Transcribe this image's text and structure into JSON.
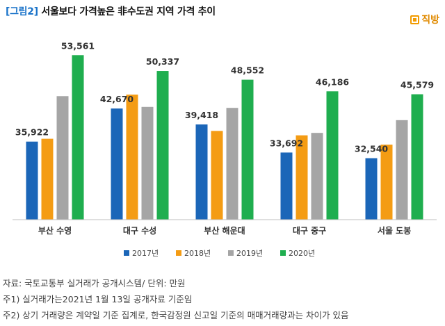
{
  "header": {
    "tag": "[그림2]",
    "title": "서울보다 가격높은 非수도권 지역 가격 추이",
    "brand": "직방",
    "brand_icon": "zigbang-logo-icon"
  },
  "colors": {
    "2017년": "#1b66b8",
    "2018년": "#f49c14",
    "2019년": "#a5a5a5",
    "2020년": "#1fae4f",
    "title_tag": "#1a73c9",
    "brand": "#f29b00"
  },
  "chart_data": {
    "type": "bar",
    "title": "서울보다 가격높은 非수도권 지역 가격 추이",
    "categories": [
      "부산 수영",
      "대구 수성",
      "부산 해운대",
      "대구 중구",
      "서울 도봉"
    ],
    "series": [
      {
        "name": "2017년",
        "values": [
          35922,
          42670,
          39418,
          33692,
          32540
        ]
      },
      {
        "name": "2018년",
        "values": [
          36500,
          45500,
          38100,
          37200,
          35300
        ]
      },
      {
        "name": "2019년",
        "values": [
          45200,
          43000,
          42800,
          37700,
          40300
        ]
      },
      {
        "name": "2020년",
        "values": [
          53561,
          50337,
          48552,
          46186,
          45579
        ]
      }
    ],
    "data_labels": [
      {
        "category": "부산 수영",
        "series": "2017년",
        "text": "35,922"
      },
      {
        "category": "부산 수영",
        "series": "2020년",
        "text": "53,561"
      },
      {
        "category": "대구 수성",
        "series": "2017년",
        "text": "42,670"
      },
      {
        "category": "대구 수성",
        "series": "2020년",
        "text": "50,337"
      },
      {
        "category": "부산 해운대",
        "series": "2017년",
        "text": "39,418"
      },
      {
        "category": "부산 해운대",
        "series": "2020년",
        "text": "48,552"
      },
      {
        "category": "대구 중구",
        "series": "2017년",
        "text": "33,692"
      },
      {
        "category": "대구 중구",
        "series": "2020년",
        "text": "46,186"
      },
      {
        "category": "서울 도봉",
        "series": "2017년",
        "text": "32,540"
      },
      {
        "category": "서울 도봉",
        "series": "2020년",
        "text": "45,579"
      }
    ],
    "ylim": [
      20000,
      58000
    ],
    "grid": false,
    "legend": "bottom"
  },
  "notes": [
    "자료: 국토교통부 실거래가 공개시스템/ 단위: 만원",
    "주1) 실거래가는2021년 1월 13일  공개자료 기준임",
    "주2) 상기 거래량은 계약일 기준 집계로, 한국감정원 신고일 기준의 매매거래량과는 차이가 있음"
  ]
}
